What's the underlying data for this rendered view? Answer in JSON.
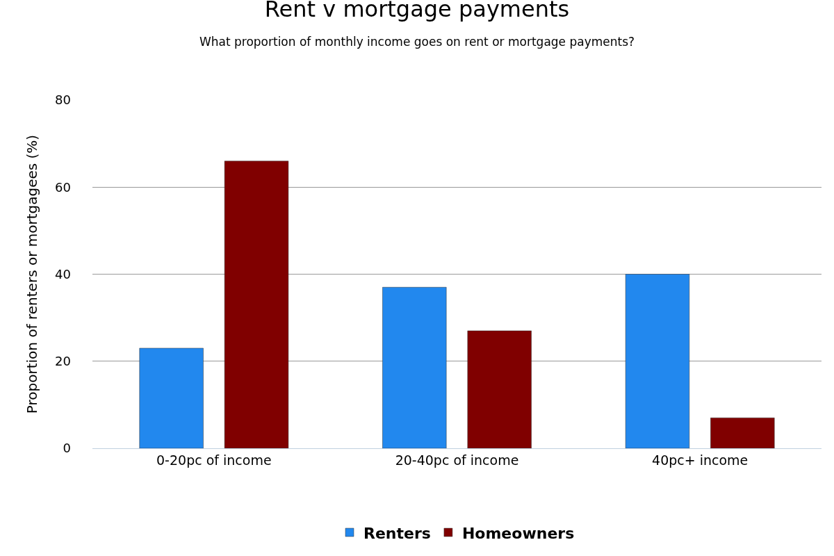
{
  "chart_data": {
    "type": "bar",
    "title": "Rent v mortgage payments",
    "subtitle": "What proportion of monthly income goes on rent or mortgage payments?",
    "ylabel": "Proportion of renters or mortgagees (%)",
    "categories": [
      "0-20pc of income",
      "20-40pc of income",
      "40pc+ income"
    ],
    "series": [
      {
        "name": "Renters",
        "color": "#2288ee",
        "values": [
          23,
          37,
          40
        ]
      },
      {
        "name": "Homeowners",
        "color": "#800000",
        "values": [
          66,
          27,
          7
        ]
      }
    ],
    "ylim": [
      0,
      80
    ],
    "yticks": [
      0,
      20,
      40,
      60,
      80
    ],
    "grid": "y",
    "legend": "bottom"
  }
}
